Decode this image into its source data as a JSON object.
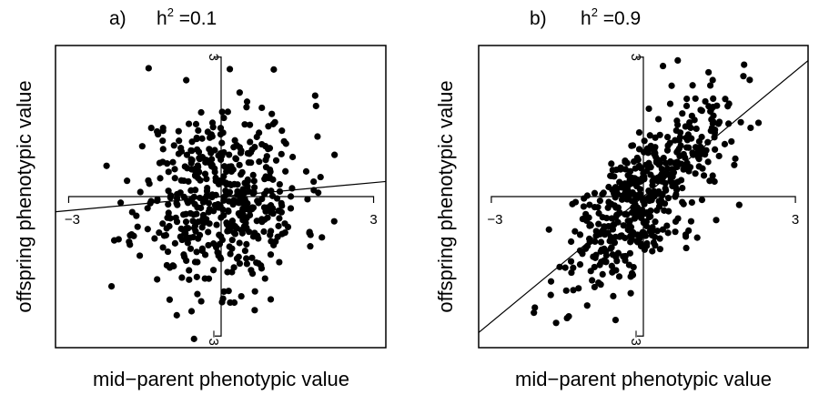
{
  "chart_data": [
    {
      "type": "scatter",
      "panel_label": "a)",
      "title_prefix": "h",
      "title_sup": "2",
      "title_suffix": " =0.1",
      "h2": 0.1,
      "xlabel": "mid−parent phenotypic value",
      "ylabel": "offspring phenotypic value",
      "xlim": [
        -3.25,
        3.25
      ],
      "ylim": [
        -3.25,
        3.25
      ],
      "x_ticks": [
        "−3",
        "3"
      ],
      "y_ticks": [
        "3",
        "−3"
      ],
      "regression": {
        "slope": 0.1,
        "intercept": 0
      },
      "points": {
        "n": 500,
        "x_sd": 0.8,
        "residual_sd": 1.0,
        "seed": 11
      },
      "grid": false
    },
    {
      "type": "scatter",
      "panel_label": "b)",
      "title_prefix": "h",
      "title_sup": "2",
      "title_suffix": " =0.9",
      "h2": 0.9,
      "xlabel": "mid−parent phenotypic value",
      "ylabel": "offspring phenotypic value",
      "xlim": [
        -3.25,
        3.25
      ],
      "ylim": [
        -3.25,
        3.25
      ],
      "x_ticks": [
        "−3",
        "3"
      ],
      "y_ticks": [
        "3",
        "−3"
      ],
      "regression": {
        "slope": 0.9,
        "intercept": 0
      },
      "points": {
        "n": 500,
        "x_sd": 0.8,
        "residual_sd": 0.72,
        "seed": 29
      },
      "grid": false
    }
  ]
}
